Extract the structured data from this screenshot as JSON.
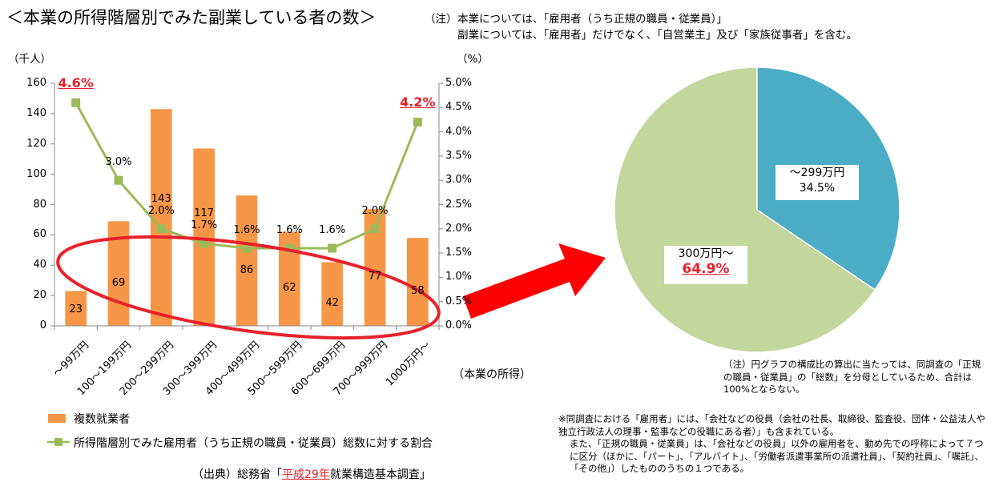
{
  "title": "＜本業の所得階層別でみた副業している者の数＞",
  "header_note": {
    "label": "（注）",
    "line1": "本業については、「雇用者（うち正規の職員・従業員）」",
    "line2": "副業については、「雇用者」だけでなく、「自営業主」及び「家族従事者」を含む。"
  },
  "colors": {
    "bar": "#f79646",
    "line": "#9bbb59",
    "pie_blue": "#4bacc6",
    "pie_green": "#c3d69b",
    "highlight": "#e8212b"
  },
  "chart_data": [
    {
      "type": "bar+line",
      "categories": [
        "～99万円",
        "100～199万円",
        "200～299万円",
        "300～399万円",
        "400～499万円",
        "500～599万円",
        "600～699万円",
        "700～999万円",
        "1000万円～"
      ],
      "series": [
        {
          "name": "複数就業者",
          "type": "bar",
          "axis": "left",
          "values": [
            23,
            69,
            143,
            117,
            86,
            62,
            42,
            77,
            58
          ]
        },
        {
          "name": "所得階層別でみた雇用者（うち正規の職員・従業員）総数に対する割合",
          "type": "line",
          "axis": "right",
          "values": [
            4.6,
            3.0,
            2.0,
            1.7,
            1.6,
            1.6,
            1.6,
            2.0,
            4.2
          ],
          "labels": [
            "4.6%",
            "3.0%",
            "2.0%",
            "1.7%",
            "1.6%",
            "1.6%",
            "1.6%",
            "2.0%",
            "4.2%"
          ]
        }
      ],
      "y_left": {
        "unit": "（千人）",
        "ticks": [
          "0",
          "20",
          "40",
          "60",
          "80",
          "100",
          "120",
          "140",
          "160"
        ],
        "range": [
          0,
          160
        ]
      },
      "y_right": {
        "unit": "（%）",
        "ticks": [
          "0.0%",
          "0.5%",
          "1.0%",
          "1.5%",
          "2.0%",
          "2.5%",
          "3.0%",
          "3.5%",
          "4.0%",
          "4.5%",
          "5.0%"
        ],
        "range": [
          0,
          5
        ]
      },
      "xlabel": "（本業の所得）",
      "grid": false,
      "legend_position": "bottom-left"
    },
    {
      "type": "pie",
      "slices": [
        {
          "label": "～299万円",
          "value": 34.5,
          "value_label": "34.5%"
        },
        {
          "label": "300万円～",
          "value": 64.9,
          "value_label": "64.9%"
        }
      ]
    }
  ],
  "pie_note": "（注）円グラフの構成比の算出に当たっては、同調査の「正規の職員・従業員」の「総数」を分母としているため、合計は100%とならない。",
  "employee_note": {
    "line1": "※同調査における「雇用者」には、「会社などの役員（会社の社長、取締役、監査役、団体・公益法人や独立行政法人の理事・監事などの役職にある者）」も含まれている。",
    "line2": "また、「正規の職員・従業員」は、「会社などの役員」以外の雇用者を、勤め先での呼称によって７つに区分（ほかに、「パート」、「アルバイト」、「労働者派遣事業所の派遣社員」、「契約社員」、「嘱託」、「その他」）したもののうちの１つである。"
  },
  "source": {
    "prefix": "（出典）総務省「",
    "highlight": "平成29年",
    "suffix": "就業構造基本調査」"
  }
}
